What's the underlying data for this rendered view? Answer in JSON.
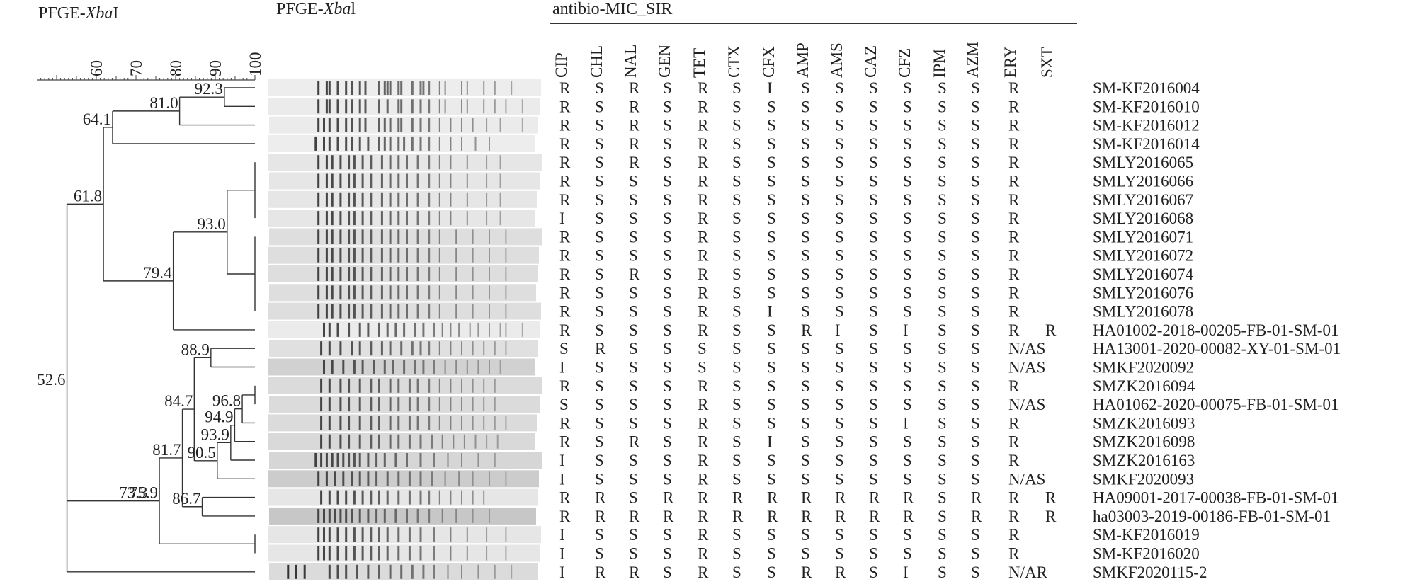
{
  "titles": {
    "dendro": {
      "pre": "PFGE-",
      "em": "Xba",
      "post": "I"
    },
    "gel": {
      "pre": "PFGE-",
      "em": "Xba",
      "post": "l"
    },
    "mic": "antibio-MIC_SIR"
  },
  "scale": {
    "ticks": [
      "60",
      "70",
      "80",
      "90",
      "100"
    ],
    "range": [
      45,
      100
    ]
  },
  "nodes": [
    {
      "id": "n1",
      "value": "92.3",
      "label": "92.3",
      "children": [
        "L0",
        "L1"
      ]
    },
    {
      "id": "n2",
      "value": "81.0",
      "label": "81.0",
      "children": [
        "n1",
        "L2"
      ]
    },
    {
      "id": "n3",
      "value": "64.1",
      "label": "64.1",
      "children": [
        "n2",
        "L3"
      ]
    },
    {
      "id": "n4",
      "value": "100",
      "label": "",
      "children": [
        "L4",
        "L5",
        "L6",
        "L7"
      ]
    },
    {
      "id": "n5",
      "value": "100",
      "label": "",
      "children": [
        "L8",
        "L9",
        "L10",
        "L11",
        "L12"
      ]
    },
    {
      "id": "n6",
      "value": "93.0",
      "label": "93.0",
      "children": [
        "n4",
        "n5"
      ]
    },
    {
      "id": "n7",
      "value": "79.4",
      "label": "79.4",
      "children": [
        "n6",
        "L13"
      ]
    },
    {
      "id": "n8",
      "value": "61.8",
      "label": "61.8",
      "children": [
        "n3",
        "n7"
      ]
    },
    {
      "id": "n9",
      "value": "88.9",
      "label": "88.9",
      "children": [
        "L14",
        "L15"
      ]
    },
    {
      "id": "n10",
      "value": "100",
      "label": "",
      "children": [
        "L16",
        "L17"
      ]
    },
    {
      "id": "n11",
      "value": "96.8",
      "label": "96.8",
      "children": [
        "n10",
        "L18"
      ]
    },
    {
      "id": "n12",
      "value": "94.9",
      "label": "94.9",
      "children": [
        "n11",
        "L19"
      ]
    },
    {
      "id": "n13",
      "value": "93.9",
      "label": "93.9",
      "children": [
        "n12",
        "L20"
      ]
    },
    {
      "id": "n14",
      "value": "90.5",
      "label": "90.5",
      "children": [
        "n13",
        "L21"
      ]
    },
    {
      "id": "n15",
      "value": "84.7",
      "label": "84.7",
      "children": [
        "n9",
        "n14"
      ]
    },
    {
      "id": "n16",
      "value": "86.7",
      "label": "86.7",
      "children": [
        "L22",
        "L23"
      ]
    },
    {
      "id": "n17",
      "value": "81.7",
      "label": "81.7",
      "children": [
        "n15",
        "n16"
      ]
    },
    {
      "id": "n18",
      "value": "100",
      "label": "",
      "children": [
        "L24",
        "L25"
      ]
    },
    {
      "id": "n19",
      "value": "75.9",
      "label": "75.9",
      "children": [
        "n17",
        "n18"
      ]
    },
    {
      "id": "n20",
      "value": "73.3",
      "label": "73.3",
      "children": [
        "n19"
      ]
    },
    {
      "id": "n21",
      "value": "52.6",
      "label": "52.6",
      "children": [
        "n8",
        "n20",
        "L26"
      ]
    }
  ],
  "antibiotics": [
    "CIP",
    "CHL",
    "NAL",
    "GEN",
    "TET",
    "CTX",
    "CFX",
    "AMP",
    "AMS",
    "CAZ",
    "CFZ",
    "IPM",
    "AZM",
    "ERY",
    "SXT"
  ],
  "rows": [
    {
      "id": "SM-KF2016004",
      "sir": [
        "R",
        "S",
        "R",
        "S",
        "R",
        "S",
        "I",
        "S",
        "S",
        "S",
        "S",
        "S",
        "S",
        "R",
        ""
      ],
      "bands": [
        18,
        21,
        22,
        25,
        28,
        30,
        33,
        35,
        40,
        42,
        43,
        44,
        47,
        48,
        52,
        55,
        56,
        58,
        62,
        64,
        70,
        72,
        78,
        82,
        88
      ],
      "shade": 0.93
    },
    {
      "id": "SM-KF2016010",
      "sir": [
        "R",
        "S",
        "R",
        "S",
        "R",
        "S",
        "S",
        "S",
        "S",
        "S",
        "S",
        "S",
        "S",
        "R",
        ""
      ],
      "bands": [
        18,
        21,
        22,
        25,
        28,
        30,
        33,
        35,
        40,
        43,
        47,
        48,
        52,
        55,
        58,
        62,
        64,
        70,
        72,
        78,
        82,
        86,
        92
      ],
      "shade": 0.92
    },
    {
      "id": "SM-KF2016012",
      "sir": [
        "R",
        "S",
        "R",
        "S",
        "R",
        "S",
        "S",
        "S",
        "S",
        "S",
        "S",
        "S",
        "S",
        "R",
        ""
      ],
      "bands": [
        18,
        20,
        22,
        25,
        28,
        30,
        33,
        35,
        40,
        42,
        44,
        47,
        48,
        52,
        55,
        58,
        62,
        66,
        70,
        74,
        79,
        84,
        92
      ],
      "shade": 0.92
    },
    {
      "id": "SM-KF2016014",
      "sir": [
        "R",
        "S",
        "R",
        "S",
        "R",
        "S",
        "S",
        "S",
        "S",
        "S",
        "S",
        "S",
        "S",
        "R",
        ""
      ],
      "bands": [
        17,
        20,
        22,
        25,
        28,
        30,
        33,
        36,
        40,
        42,
        44,
        47,
        49,
        52,
        55,
        58,
        62,
        66,
        70,
        75,
        80
      ],
      "shade": 0.93
    },
    {
      "id": "SMLY2016065",
      "sir": [
        "R",
        "S",
        "R",
        "S",
        "R",
        "S",
        "S",
        "S",
        "S",
        "S",
        "S",
        "S",
        "S",
        "R",
        ""
      ],
      "bands": [
        18,
        21,
        23,
        26,
        29,
        31,
        34,
        37,
        41,
        44,
        47,
        50,
        54,
        58,
        62,
        66,
        72,
        79,
        84
      ],
      "shade": 0.9
    },
    {
      "id": "SMLY2016066",
      "sir": [
        "R",
        "S",
        "S",
        "S",
        "R",
        "S",
        "S",
        "S",
        "S",
        "S",
        "S",
        "S",
        "S",
        "R",
        ""
      ],
      "bands": [
        18,
        21,
        23,
        26,
        29,
        31,
        34,
        37,
        41,
        44,
        47,
        50,
        54,
        58,
        62,
        66,
        72,
        79,
        84
      ],
      "shade": 0.9
    },
    {
      "id": "SMLY2016067",
      "sir": [
        "R",
        "S",
        "S",
        "S",
        "R",
        "S",
        "S",
        "S",
        "S",
        "S",
        "S",
        "S",
        "S",
        "R",
        ""
      ],
      "bands": [
        18,
        21,
        23,
        26,
        29,
        31,
        34,
        37,
        41,
        44,
        47,
        50,
        54,
        58,
        62,
        66,
        72,
        79,
        84
      ],
      "shade": 0.9
    },
    {
      "id": "SMLY2016068",
      "sir": [
        "I",
        "S",
        "S",
        "S",
        "R",
        "S",
        "S",
        "S",
        "S",
        "S",
        "S",
        "S",
        "S",
        "R",
        ""
      ],
      "bands": [
        18,
        21,
        23,
        26,
        29,
        31,
        34,
        37,
        41,
        44,
        47,
        50,
        54,
        58,
        62,
        66,
        72,
        79,
        84
      ],
      "shade": 0.9
    },
    {
      "id": "SMLY2016071",
      "sir": [
        "R",
        "S",
        "S",
        "S",
        "R",
        "S",
        "S",
        "S",
        "S",
        "S",
        "S",
        "S",
        "S",
        "R",
        ""
      ],
      "bands": [
        18,
        21,
        23,
        26,
        29,
        31,
        34,
        37,
        41,
        44,
        47,
        50,
        54,
        58,
        62,
        68,
        74,
        80,
        86
      ],
      "shade": 0.87
    },
    {
      "id": "SMLY2016072",
      "sir": [
        "R",
        "S",
        "S",
        "S",
        "R",
        "S",
        "S",
        "S",
        "S",
        "S",
        "S",
        "S",
        "S",
        "R",
        ""
      ],
      "bands": [
        18,
        21,
        23,
        26,
        29,
        31,
        34,
        37,
        41,
        44,
        47,
        50,
        54,
        58,
        62,
        68,
        74,
        80,
        86
      ],
      "shade": 0.87
    },
    {
      "id": "SMLY2016074",
      "sir": [
        "R",
        "S",
        "R",
        "S",
        "R",
        "S",
        "S",
        "S",
        "S",
        "S",
        "S",
        "S",
        "S",
        "R",
        ""
      ],
      "bands": [
        18,
        21,
        23,
        26,
        29,
        31,
        34,
        37,
        41,
        44,
        47,
        50,
        54,
        58,
        62,
        68,
        74,
        80,
        86
      ],
      "shade": 0.87
    },
    {
      "id": "SMLY2016076",
      "sir": [
        "R",
        "S",
        "S",
        "S",
        "R",
        "S",
        "S",
        "S",
        "S",
        "S",
        "S",
        "S",
        "S",
        "R",
        ""
      ],
      "bands": [
        18,
        21,
        23,
        26,
        29,
        31,
        34,
        37,
        41,
        44,
        47,
        50,
        54,
        58,
        62,
        68,
        74,
        80,
        86
      ],
      "shade": 0.87
    },
    {
      "id": "SMLY2016078",
      "sir": [
        "R",
        "S",
        "S",
        "S",
        "R",
        "S",
        "I",
        "S",
        "S",
        "S",
        "S",
        "S",
        "S",
        "R",
        ""
      ],
      "bands": [
        18,
        21,
        23,
        26,
        29,
        31,
        34,
        37,
        41,
        44,
        47,
        50,
        54,
        58,
        62,
        68,
        74,
        80,
        86
      ],
      "shade": 0.87
    },
    {
      "id": "HA01002-2018-00205-FB-01-SM-01",
      "sir": [
        "R",
        "S",
        "S",
        "S",
        "R",
        "S",
        "S",
        "R",
        "I",
        "S",
        "I",
        "S",
        "S",
        "R",
        "R"
      ],
      "bands": [
        20,
        22,
        25,
        29,
        33,
        36,
        40,
        43,
        46,
        49,
        53,
        56,
        60,
        63,
        66,
        69,
        73,
        76,
        80,
        84,
        86,
        92
      ],
      "shade": 0.92
    },
    {
      "id": "HA13001-2020-00082-XY-01-SM-01",
      "sir": [
        "S",
        "R",
        "S",
        "S",
        "S",
        "S",
        "S",
        "S",
        "S",
        "S",
        "S",
        "S",
        "S",
        "N/AS",
        ""
      ],
      "bands": [
        19,
        22,
        26,
        30,
        33,
        37,
        41,
        44,
        48,
        52,
        55,
        58,
        62,
        66,
        70,
        74,
        78,
        82,
        86
      ],
      "shade": 0.88
    },
    {
      "id": "SMKF2020092",
      "sir": [
        "I",
        "S",
        "S",
        "S",
        "S",
        "S",
        "S",
        "S",
        "S",
        "S",
        "S",
        "S",
        "S",
        "N/AS",
        ""
      ],
      "bands": [
        20,
        23,
        27,
        31,
        34,
        38,
        42,
        45,
        49,
        53,
        56,
        60,
        64,
        68,
        72,
        76,
        80,
        84
      ],
      "shade": 0.82
    },
    {
      "id": "SMZK2016094",
      "sir": [
        "R",
        "S",
        "S",
        "S",
        "R",
        "S",
        "S",
        "S",
        "S",
        "S",
        "S",
        "S",
        "S",
        "R",
        ""
      ],
      "bands": [
        19,
        22,
        26,
        29,
        33,
        37,
        40,
        44,
        47,
        51,
        54,
        58,
        62,
        66,
        70,
        74,
        78,
        82
      ],
      "shade": 0.86
    },
    {
      "id": "HA01062-2020-00075-FB-01-SM-01",
      "sir": [
        "S",
        "S",
        "S",
        "S",
        "R",
        "S",
        "S",
        "S",
        "S",
        "S",
        "S",
        "S",
        "S",
        "N/AS",
        ""
      ],
      "bands": [
        19,
        22,
        26,
        29,
        33,
        37,
        40,
        44,
        47,
        51,
        54,
        58,
        62,
        66,
        70,
        74,
        78,
        82
      ],
      "shade": 0.86
    },
    {
      "id": "SMZK2016093",
      "sir": [
        "R",
        "S",
        "S",
        "S",
        "R",
        "S",
        "S",
        "S",
        "S",
        "S",
        "I",
        "S",
        "S",
        "R",
        ""
      ],
      "bands": [
        19,
        22,
        26,
        29,
        33,
        37,
        40,
        44,
        47,
        51,
        54,
        58,
        62,
        66,
        70,
        74,
        78,
        82,
        86
      ],
      "shade": 0.86
    },
    {
      "id": "SMZK2016098",
      "sir": [
        "R",
        "S",
        "R",
        "S",
        "R",
        "S",
        "I",
        "S",
        "S",
        "S",
        "S",
        "S",
        "S",
        "R",
        ""
      ],
      "bands": [
        19,
        22,
        26,
        29,
        33,
        37,
        40,
        44,
        47,
        51,
        55,
        59,
        63,
        67,
        71,
        75,
        79,
        83
      ],
      "shade": 0.85
    },
    {
      "id": "SMZK2016163",
      "sir": [
        "I",
        "S",
        "S",
        "S",
        "R",
        "S",
        "S",
        "S",
        "S",
        "S",
        "S",
        "S",
        "S",
        "R",
        ""
      ],
      "bands": [
        17,
        19,
        21,
        23,
        25,
        27,
        29,
        31,
        33,
        36,
        39,
        42,
        46,
        50,
        55,
        60,
        65,
        70,
        76,
        82
      ],
      "shade": 0.84
    },
    {
      "id": "SMKF2020093",
      "sir": [
        "I",
        "S",
        "S",
        "S",
        "R",
        "S",
        "S",
        "S",
        "S",
        "S",
        "S",
        "S",
        "S",
        "N/AS",
        ""
      ],
      "bands": [
        18,
        21,
        24,
        27,
        30,
        33,
        36,
        39,
        43,
        47,
        51,
        55,
        59,
        64,
        69,
        74,
        80,
        86
      ],
      "shade": 0.8
    },
    {
      "id": "HA09001-2017-00038-FB-01-SM-01",
      "sir": [
        "R",
        "R",
        "S",
        "R",
        "R",
        "R",
        "R",
        "R",
        "R",
        "R",
        "R",
        "S",
        "R",
        "R",
        "R"
      ],
      "bands": [
        19,
        22,
        25,
        28,
        31,
        34,
        37,
        40,
        43,
        47,
        51,
        55,
        58,
        62,
        66,
        70,
        74,
        78
      ],
      "shade": 0.9
    },
    {
      "id": "ha03003-2019-00186-FB-01-SM-01",
      "sir": [
        "R",
        "R",
        "R",
        "R",
        "R",
        "R",
        "R",
        "R",
        "R",
        "R",
        "R",
        "S",
        "R",
        "R",
        "R"
      ],
      "bands": [
        18,
        20,
        22,
        24,
        26,
        28,
        30,
        33,
        36,
        39,
        42,
        46,
        50,
        54,
        58,
        63,
        68,
        74,
        80
      ],
      "shade": 0.78
    },
    {
      "id": "SM-KF2016019",
      "sir": [
        "I",
        "S",
        "S",
        "S",
        "R",
        "S",
        "S",
        "S",
        "S",
        "S",
        "S",
        "S",
        "S",
        "R",
        ""
      ],
      "bands": [
        18,
        20,
        22,
        25,
        28,
        31,
        34,
        37,
        40,
        43,
        47,
        51,
        55,
        60,
        66,
        72,
        79,
        86
      ],
      "shade": 0.9
    },
    {
      "id": "SM-KF2016020",
      "sir": [
        "I",
        "S",
        "S",
        "S",
        "R",
        "S",
        "S",
        "S",
        "S",
        "S",
        "S",
        "S",
        "S",
        "R",
        ""
      ],
      "bands": [
        18,
        20,
        22,
        25,
        28,
        31,
        34,
        37,
        40,
        43,
        47,
        51,
        55,
        60,
        66,
        72,
        79,
        86
      ],
      "shade": 0.9
    },
    {
      "id": "SMKF2020115-2",
      "sir": [
        "I",
        "R",
        "R",
        "S",
        "R",
        "S",
        "S",
        "R",
        "R",
        "S",
        "I",
        "S",
        "S",
        "N/AR",
        ""
      ],
      "bands": [
        7,
        10,
        13,
        22,
        25,
        28,
        32,
        36,
        40,
        44,
        48,
        52,
        56,
        60,
        65,
        70,
        76,
        82,
        88
      ],
      "shade": 0.86
    }
  ]
}
